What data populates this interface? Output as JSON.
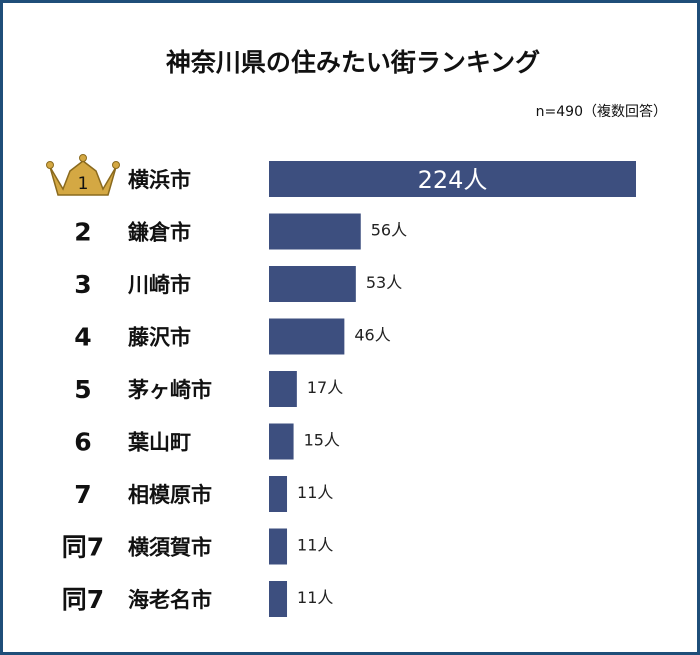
{
  "chart_data": {
    "type": "bar",
    "orientation": "horizontal",
    "title": "神奈川県の住みたい街ランキング",
    "note": "n=490（複数回答）",
    "unit": "人",
    "ranks": [
      "1",
      "2",
      "3",
      "4",
      "5",
      "6",
      "7",
      "同7",
      "同7"
    ],
    "categories": [
      "横浜市",
      "鎌倉市",
      "川崎市",
      "藤沢市",
      "茅ヶ崎市",
      "葉山町",
      "相模原市",
      "横須賀市",
      "海老名市"
    ],
    "values": [
      224,
      56,
      53,
      46,
      17,
      15,
      11,
      11,
      11
    ],
    "value_labels": [
      "224人",
      "56人",
      "53人",
      "46人",
      "17人",
      "15人",
      "11人",
      "11人",
      "11人"
    ],
    "xlim": [
      0,
      224
    ],
    "legend": "none",
    "grid": false
  },
  "colors": {
    "bar": "#3d4f7f",
    "frame": "#1f4e79",
    "crown": "#d4a843",
    "crown_stroke": "#8a6a1e"
  },
  "icons": {
    "first_place": "crown-icon"
  }
}
